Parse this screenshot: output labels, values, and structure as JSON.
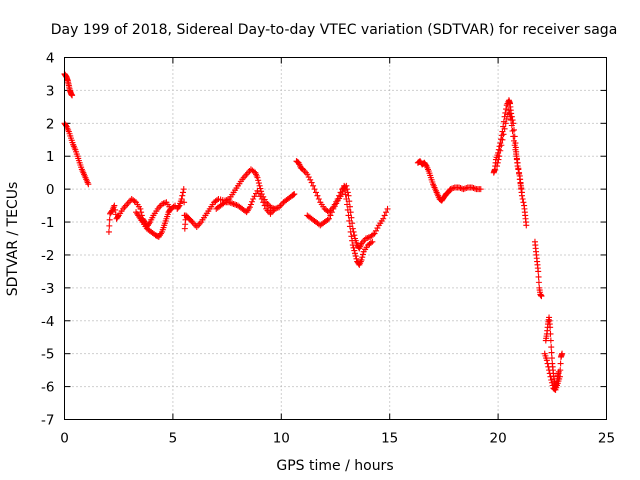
{
  "chart_data": {
    "type": "scatter",
    "title": "Day 199 of 2018, Sidereal Day-to-day VTEC variation (SDTVAR) for receiver saga",
    "xlabel": "GPS time / hours",
    "ylabel": "SDTVAR / TECUs",
    "xlim": [
      0,
      25
    ],
    "ylim": [
      -7,
      4
    ],
    "x_ticks": [
      "0",
      "5",
      "10",
      "15",
      "20",
      "25"
    ],
    "y_ticks": [
      "4",
      "3",
      "2",
      "1",
      "0",
      "-1",
      "-2",
      "-3",
      "-4",
      "-5",
      "-6",
      "-7"
    ],
    "grid": true,
    "marker": "plus",
    "marker_color": "#ff0000",
    "series": [
      {
        "segments": [
          [
            [
              0.0,
              3.5
            ],
            [
              0.05,
              3.45
            ],
            [
              0.1,
              3.4
            ],
            [
              0.15,
              3.3
            ],
            [
              0.2,
              3.15
            ],
            [
              0.25,
              3.0
            ],
            [
              0.3,
              2.9
            ],
            [
              0.35,
              2.85
            ]
          ],
          [
            [
              0.0,
              2.0
            ],
            [
              0.1,
              1.9
            ],
            [
              0.2,
              1.75
            ],
            [
              0.3,
              1.55
            ],
            [
              0.4,
              1.35
            ],
            [
              0.5,
              1.2
            ],
            [
              0.6,
              1.0
            ],
            [
              0.7,
              0.8
            ],
            [
              0.8,
              0.6
            ],
            [
              0.9,
              0.45
            ],
            [
              1.0,
              0.3
            ],
            [
              1.1,
              0.15
            ]
          ],
          [
            [
              2.05,
              -1.3
            ],
            [
              2.1,
              -0.75
            ],
            [
              2.2,
              -0.65
            ],
            [
              2.3,
              -0.5
            ],
            [
              2.4,
              -0.9
            ],
            [
              2.5,
              -0.8
            ],
            [
              2.7,
              -0.6
            ],
            [
              2.9,
              -0.45
            ],
            [
              3.1,
              -0.3
            ],
            [
              3.3,
              -0.4
            ],
            [
              3.5,
              -0.6
            ],
            [
              3.6,
              -0.9
            ],
            [
              3.7,
              -1.0
            ],
            [
              3.8,
              -1.15
            ],
            [
              3.95,
              -1.0
            ],
            [
              4.1,
              -0.8
            ],
            [
              4.3,
              -0.6
            ],
            [
              4.5,
              -0.45
            ],
            [
              4.7,
              -0.4
            ],
            [
              4.9,
              -0.6
            ],
            [
              5.1,
              -0.5
            ]
          ],
          [
            [
              3.3,
              -0.7
            ],
            [
              3.45,
              -0.85
            ],
            [
              3.6,
              -1.0
            ],
            [
              3.8,
              -1.2
            ],
            [
              4.0,
              -1.3
            ],
            [
              4.2,
              -1.4
            ],
            [
              4.35,
              -1.45
            ],
            [
              4.5,
              -1.3
            ],
            [
              4.6,
              -1.1
            ],
            [
              4.7,
              -0.9
            ],
            [
              4.8,
              -0.7
            ],
            [
              4.9,
              -0.6
            ]
          ],
          [
            [
              5.2,
              -0.6
            ],
            [
              5.3,
              -0.5
            ],
            [
              5.4,
              -0.3
            ],
            [
              5.5,
              0.0
            ],
            [
              5.55,
              -1.2
            ],
            [
              5.6,
              -0.8
            ],
            [
              5.75,
              -0.9
            ],
            [
              5.9,
              -1.0
            ],
            [
              6.1,
              -1.15
            ],
            [
              6.3,
              -1.0
            ],
            [
              6.5,
              -0.8
            ],
            [
              6.7,
              -0.6
            ],
            [
              6.9,
              -0.4
            ],
            [
              7.1,
              -0.3
            ],
            [
              7.4,
              -0.35
            ],
            [
              7.6,
              -0.3
            ],
            [
              7.8,
              -0.1
            ],
            [
              8.0,
              0.1
            ],
            [
              8.2,
              0.3
            ],
            [
              8.4,
              0.45
            ],
            [
              8.6,
              0.6
            ],
            [
              8.8,
              0.5
            ],
            [
              8.9,
              0.35
            ],
            [
              9.0,
              0.1
            ],
            [
              9.1,
              -0.15
            ],
            [
              9.3,
              -0.4
            ],
            [
              9.5,
              -0.55
            ],
            [
              9.7,
              -0.6
            ],
            [
              9.9,
              -0.55
            ],
            [
              10.1,
              -0.4
            ],
            [
              10.3,
              -0.3
            ],
            [
              10.5,
              -0.2
            ],
            [
              10.6,
              -0.15
            ]
          ],
          [
            [
              7.0,
              -0.6
            ],
            [
              7.2,
              -0.5
            ],
            [
              7.4,
              -0.4
            ],
            [
              7.6,
              -0.4
            ],
            [
              7.8,
              -0.45
            ],
            [
              8.0,
              -0.5
            ],
            [
              8.2,
              -0.6
            ],
            [
              8.4,
              -0.7
            ],
            [
              8.55,
              -0.55
            ],
            [
              8.7,
              -0.3
            ],
            [
              8.9,
              -0.05
            ],
            [
              9.1,
              -0.3
            ],
            [
              9.3,
              -0.6
            ],
            [
              9.5,
              -0.75
            ],
            [
              9.7,
              -0.6
            ]
          ],
          [
            [
              10.7,
              0.85
            ],
            [
              10.8,
              0.8
            ],
            [
              10.9,
              0.65
            ],
            [
              11.0,
              0.6
            ],
            [
              11.2,
              0.45
            ],
            [
              11.4,
              0.2
            ],
            [
              11.6,
              -0.1
            ],
            [
              11.8,
              -0.4
            ],
            [
              12.0,
              -0.6
            ],
            [
              12.2,
              -0.7
            ],
            [
              12.4,
              -0.55
            ],
            [
              12.6,
              -0.3
            ],
            [
              12.8,
              0.0
            ],
            [
              13.0,
              0.1
            ],
            [
              13.1,
              -0.2
            ],
            [
              13.2,
              -0.7
            ],
            [
              13.3,
              -1.2
            ],
            [
              13.4,
              -1.5
            ],
            [
              13.5,
              -1.7
            ],
            [
              13.6,
              -1.8
            ],
            [
              13.7,
              -1.65
            ],
            [
              13.9,
              -1.5
            ],
            [
              14.1,
              -1.45
            ],
            [
              14.3,
              -1.35
            ],
            [
              14.5,
              -1.1
            ],
            [
              14.7,
              -0.9
            ],
            [
              14.9,
              -0.6
            ]
          ],
          [
            [
              11.2,
              -0.8
            ],
            [
              11.4,
              -0.9
            ],
            [
              11.6,
              -1.0
            ],
            [
              11.8,
              -1.1
            ],
            [
              12.0,
              -1.0
            ],
            [
              12.2,
              -0.9
            ],
            [
              12.4,
              -0.6
            ],
            [
              12.6,
              -0.35
            ],
            [
              12.8,
              -0.15
            ],
            [
              12.9,
              0.1
            ],
            [
              13.0,
              -0.3
            ],
            [
              13.1,
              -0.8
            ],
            [
              13.2,
              -1.3
            ],
            [
              13.3,
              -1.7
            ],
            [
              13.4,
              -1.95
            ],
            [
              13.5,
              -2.2
            ],
            [
              13.6,
              -2.3
            ],
            [
              13.7,
              -2.15
            ],
            [
              13.8,
              -1.9
            ],
            [
              14.0,
              -1.7
            ],
            [
              14.2,
              -1.6
            ]
          ],
          [
            [
              16.3,
              0.8
            ],
            [
              16.4,
              0.85
            ],
            [
              16.5,
              0.75
            ],
            [
              16.6,
              0.8
            ],
            [
              16.7,
              0.7
            ],
            [
              16.8,
              0.55
            ],
            [
              16.9,
              0.35
            ],
            [
              17.0,
              0.15
            ],
            [
              17.1,
              0.0
            ],
            [
              17.2,
              -0.15
            ],
            [
              17.3,
              -0.3
            ],
            [
              17.4,
              -0.35
            ],
            [
              17.5,
              -0.25
            ],
            [
              17.6,
              -0.15
            ],
            [
              17.7,
              -0.1
            ],
            [
              17.8,
              0.0
            ],
            [
              18.0,
              0.05
            ],
            [
              18.2,
              0.05
            ],
            [
              18.4,
              0.0
            ],
            [
              18.6,
              0.05
            ],
            [
              18.8,
              0.05
            ],
            [
              19.0,
              0.0
            ],
            [
              19.2,
              0.0
            ]
          ],
          [
            [
              19.8,
              0.5
            ],
            [
              19.85,
              0.6
            ],
            [
              19.9,
              0.9
            ],
            [
              20.0,
              1.1
            ],
            [
              20.1,
              1.4
            ],
            [
              20.2,
              1.75
            ],
            [
              20.3,
              2.2
            ],
            [
              20.4,
              2.55
            ],
            [
              20.5,
              2.7
            ],
            [
              20.55,
              2.6
            ],
            [
              20.6,
              2.3
            ],
            [
              20.7,
              2.0
            ],
            [
              20.8,
              1.4
            ],
            [
              20.85,
              1.0
            ],
            [
              20.9,
              0.7
            ],
            [
              21.0,
              0.4
            ],
            [
              21.05,
              0.1
            ],
            [
              21.1,
              -0.2
            ],
            [
              21.2,
              -0.5
            ],
            [
              21.25,
              -0.8
            ],
            [
              21.3,
              -1.1
            ]
          ],
          [
            [
              19.95,
              0.7
            ],
            [
              20.05,
              1.0
            ],
            [
              20.2,
              1.5
            ],
            [
              20.35,
              2.0
            ],
            [
              20.5,
              2.4
            ],
            [
              20.6,
              2.1
            ],
            [
              20.7,
              1.6
            ],
            [
              20.8,
              1.2
            ],
            [
              20.9,
              0.8
            ],
            [
              21.0,
              0.3
            ],
            [
              21.1,
              -0.1
            ]
          ],
          [
            [
              21.7,
              -1.6
            ],
            [
              21.75,
              -1.9
            ],
            [
              21.8,
              -2.2
            ],
            [
              21.85,
              -2.5
            ],
            [
              21.9,
              -3.0
            ],
            [
              21.95,
              -3.2
            ],
            [
              22.0,
              -3.25
            ]
          ],
          [
            [
              22.2,
              -4.6
            ],
            [
              22.25,
              -4.4
            ],
            [
              22.3,
              -4.1
            ],
            [
              22.35,
              -3.9
            ],
            [
              22.4,
              -4.2
            ],
            [
              22.45,
              -4.8
            ],
            [
              22.5,
              -5.3
            ],
            [
              22.55,
              -5.6
            ],
            [
              22.6,
              -5.85
            ],
            [
              22.65,
              -6.0
            ],
            [
              22.7,
              -5.9
            ],
            [
              22.75,
              -5.7
            ],
            [
              22.8,
              -5.55
            ]
          ],
          [
            [
              22.15,
              -5.0
            ],
            [
              22.25,
              -5.2
            ],
            [
              22.35,
              -5.5
            ],
            [
              22.45,
              -5.8
            ],
            [
              22.55,
              -6.05
            ],
            [
              22.65,
              -6.1
            ],
            [
              22.75,
              -5.9
            ],
            [
              22.85,
              -5.7
            ],
            [
              22.9,
              -5.1
            ],
            [
              22.95,
              -5.0
            ]
          ]
        ]
      }
    ]
  }
}
